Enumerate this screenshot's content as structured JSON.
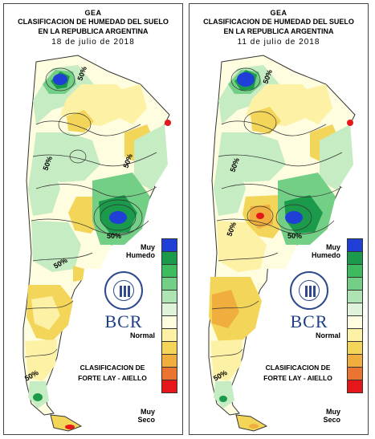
{
  "panels": [
    {
      "id": "left",
      "title_org": "GEA",
      "title_line1": "CLASIFICACION DE HUMEDAD DEL SUELO",
      "title_line2": "EN LA REPUBLICA ARGENTINA",
      "date": "18 de julio de 2018",
      "contour_labels": [
        "50%",
        "50%",
        "50%",
        "50%",
        "50%",
        "50%"
      ],
      "legend_top": "Muy\nHumedo",
      "legend_mid": "Normal",
      "legend_bottom": "Muy\nSeco",
      "classification_line1": "CLASIFICACION DE",
      "classification_line2": "FORTE LAY - AIELLO",
      "logo_text": "BCR",
      "logo_icon": "bolsa-de-comercio-rosario-seal-icon"
    },
    {
      "id": "right",
      "title_org": "GEA",
      "title_line1": "CLASIFICACION DE HUMEDAD DEL SUELO",
      "title_line2": "EN LA REPUBLICA ARGENTINA",
      "date": "11 de julio de 2018",
      "contour_labels": [
        "50%",
        "50%",
        "50%",
        "50%",
        "50%"
      ],
      "legend_top": "Muy\nHumedo",
      "legend_mid": "Normal",
      "legend_bottom": "Muy\nSeco",
      "classification_line1": "CLASIFICACION DE",
      "classification_line2": "FORTE LAY - AIELLO",
      "logo_text": "BCR",
      "logo_icon": "bolsa-de-comercio-rosario-seal-icon"
    }
  ],
  "legend_colors": [
    "#1f3fd6",
    "#1a9a4a",
    "#3dbb5e",
    "#74cf86",
    "#aee4b4",
    "#dff3da",
    "#fffde0",
    "#fdf1a6",
    "#f3d659",
    "#efae3e",
    "#ea7430",
    "#e6171b"
  ],
  "map_colors": {
    "very_wet": "#1f3fd6",
    "wet": "#1a9a4a",
    "moist": "#74cf86",
    "light_moist": "#c6ecc3",
    "normal": "#fffde0",
    "dry": "#fdf1a6",
    "drier": "#f3d659",
    "very_dry_orange": "#efae3e",
    "red": "#e6171b"
  }
}
